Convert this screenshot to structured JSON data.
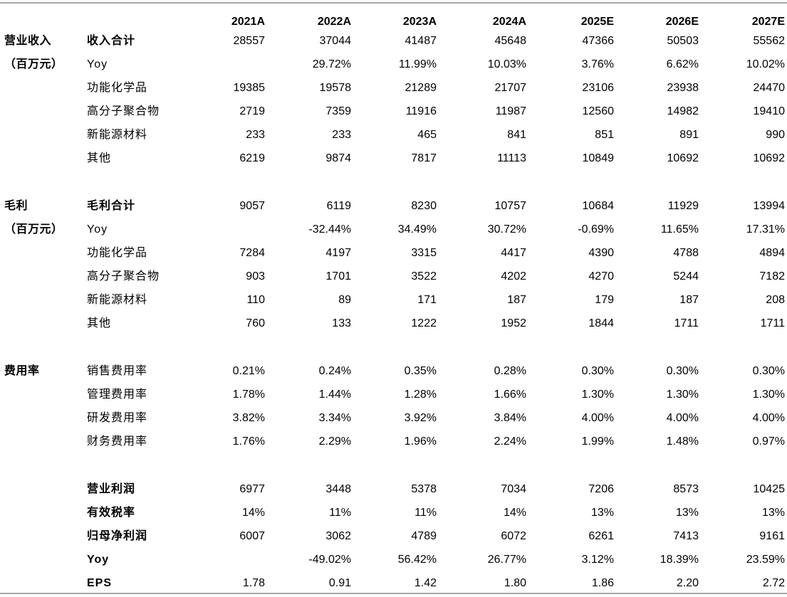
{
  "header": {
    "years": [
      "2021A",
      "2022A",
      "2023A",
      "2024A",
      "2025E",
      "2026E",
      "2027E"
    ]
  },
  "rows": [
    {
      "group": "营业收入",
      "label": "收入合计",
      "bold": true,
      "values": [
        "28557",
        "37044",
        "41487",
        "45648",
        "47366",
        "50503",
        "55562"
      ]
    },
    {
      "group": "（百万元）",
      "label": "Yoy",
      "bold": false,
      "values": [
        "",
        "29.72%",
        "11.99%",
        "10.03%",
        "3.76%",
        "6.62%",
        "10.02%"
      ]
    },
    {
      "group": "",
      "label": "功能化学品",
      "bold": false,
      "values": [
        "19385",
        "19578",
        "21289",
        "21707",
        "23106",
        "23938",
        "24470"
      ]
    },
    {
      "group": "",
      "label": "高分子聚合物",
      "bold": false,
      "values": [
        "2719",
        "7359",
        "11916",
        "11987",
        "12560",
        "14982",
        "19410"
      ]
    },
    {
      "group": "",
      "label": "新能源材料",
      "bold": false,
      "values": [
        "233",
        "233",
        "465",
        "841",
        "851",
        "891",
        "990"
      ]
    },
    {
      "group": "",
      "label": "其他",
      "bold": false,
      "values": [
        "6219",
        "9874",
        "7817",
        "11113",
        "10849",
        "10692",
        "10692"
      ]
    },
    {
      "group": "毛利",
      "label": "毛利合计",
      "bold": true,
      "values": [
        "9057",
        "6119",
        "8230",
        "10757",
        "10684",
        "11929",
        "13994"
      ]
    },
    {
      "group": "（百万元）",
      "label": "Yoy",
      "bold": false,
      "values": [
        "",
        "-32.44%",
        "34.49%",
        "30.72%",
        "-0.69%",
        "11.65%",
        "17.31%"
      ]
    },
    {
      "group": "",
      "label": "功能化学品",
      "bold": false,
      "values": [
        "7284",
        "4197",
        "3315",
        "4417",
        "4390",
        "4788",
        "4894"
      ]
    },
    {
      "group": "",
      "label": "高分子聚合物",
      "bold": false,
      "values": [
        "903",
        "1701",
        "3522",
        "4202",
        "4270",
        "5244",
        "7182"
      ]
    },
    {
      "group": "",
      "label": "新能源材料",
      "bold": false,
      "values": [
        "110",
        "89",
        "171",
        "187",
        "179",
        "187",
        "208"
      ]
    },
    {
      "group": "",
      "label": "其他",
      "bold": false,
      "values": [
        "760",
        "133",
        "1222",
        "1952",
        "1844",
        "1711",
        "1711"
      ]
    },
    {
      "group": "费用率",
      "label": "销售费用率",
      "bold": false,
      "values": [
        "0.21%",
        "0.24%",
        "0.35%",
        "0.28%",
        "0.30%",
        "0.30%",
        "0.30%"
      ]
    },
    {
      "group": "",
      "label": "管理费用率",
      "bold": false,
      "values": [
        "1.78%",
        "1.44%",
        "1.28%",
        "1.66%",
        "1.30%",
        "1.30%",
        "1.30%"
      ]
    },
    {
      "group": "",
      "label": "研发费用率",
      "bold": false,
      "values": [
        "3.82%",
        "3.34%",
        "3.92%",
        "3.84%",
        "4.00%",
        "4.00%",
        "4.00%"
      ]
    },
    {
      "group": "",
      "label": "财务费用率",
      "bold": false,
      "values": [
        "1.76%",
        "2.29%",
        "1.96%",
        "2.24%",
        "1.99%",
        "1.48%",
        "0.97%"
      ]
    },
    {
      "group": "",
      "label": "营业利润",
      "bold": true,
      "values": [
        "6977",
        "3448",
        "5378",
        "7034",
        "7206",
        "8573",
        "10425"
      ]
    },
    {
      "group": "",
      "label": "有效税率",
      "bold": true,
      "values": [
        "14%",
        "11%",
        "11%",
        "14%",
        "13%",
        "13%",
        "13%"
      ]
    },
    {
      "group": "",
      "label": "归母净利润",
      "bold": true,
      "values": [
        "6007",
        "3062",
        "4789",
        "6072",
        "6261",
        "7413",
        "9161"
      ]
    },
    {
      "group": "",
      "label": "Yoy",
      "bold": true,
      "values": [
        "",
        "-49.02%",
        "56.42%",
        "26.77%",
        "3.12%",
        "18.39%",
        "23.59%"
      ]
    },
    {
      "group": "",
      "label": "EPS",
      "bold": true,
      "values": [
        "1.78",
        "0.91",
        "1.42",
        "1.80",
        "1.86",
        "2.20",
        "2.72"
      ]
    }
  ]
}
